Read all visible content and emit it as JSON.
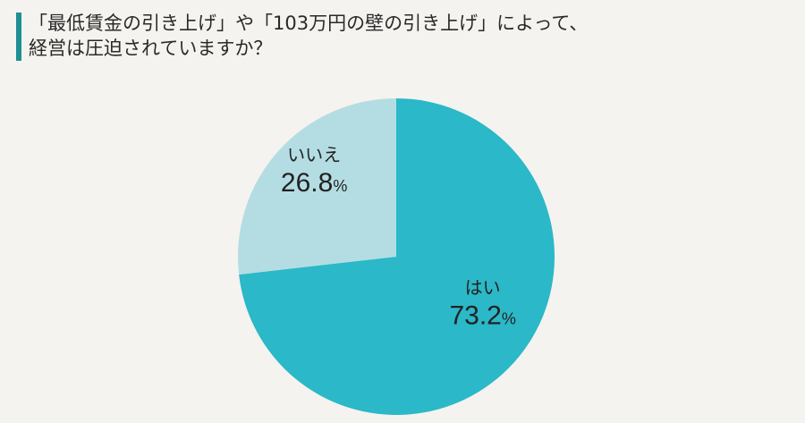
{
  "header": {
    "title_line1": "「最低賃金の引き上げ」や「103万円の壁の引き上げ」によって、",
    "title_line2": "経営は圧迫されていますか？",
    "accent_color": "#1f8f96"
  },
  "chart_data": {
    "type": "pie",
    "title": "「最低賃金の引き上げ」や「103万円の壁の引き上げ」によって、経営は圧迫されていますか？",
    "start": "12 o'clock",
    "direction": "clockwise",
    "slices": [
      {
        "label": "はい",
        "value": 73.2,
        "value_label": "73.2",
        "unit": "%",
        "color": "#2bb8c8"
      },
      {
        "label": "いいえ",
        "value": 26.8,
        "value_label": "26.8",
        "unit": "%",
        "color": "#b3dde3"
      }
    ]
  }
}
